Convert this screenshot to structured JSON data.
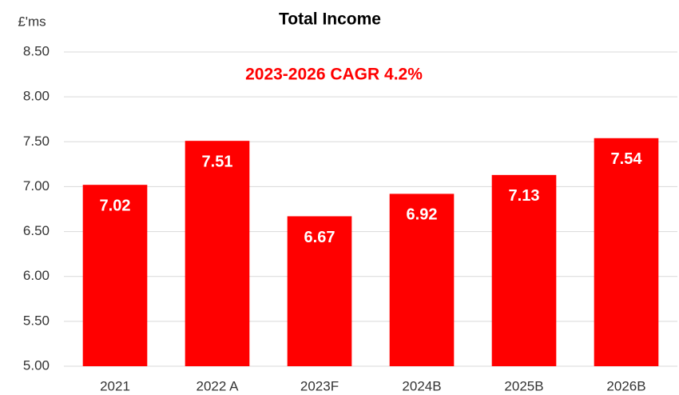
{
  "chart_data": {
    "type": "bar",
    "title": "Total Income",
    "y_label": "£'ms",
    "annotation": "2023-2026 CAGR 4.2%",
    "categories": [
      "2021",
      "2022 A",
      "2023F",
      "2024B",
      "2025B",
      "2026B"
    ],
    "values": [
      7.02,
      7.51,
      6.67,
      6.92,
      7.13,
      7.54
    ],
    "color": "#ff0000",
    "annotation_color": "#ff0000",
    "value_label_color": "#ffffff",
    "ylim": [
      5,
      8.5
    ],
    "yticks": [
      {
        "value": 5,
        "label": "5.00"
      },
      {
        "value": 5.5,
        "label": "5.50"
      },
      {
        "value": 6,
        "label": "6.00"
      },
      {
        "value": 6.5,
        "label": "6.50"
      },
      {
        "value": 7,
        "label": "7.00"
      },
      {
        "value": 7.5,
        "label": "7.50"
      },
      {
        "value": 8,
        "label": "8.00"
      },
      {
        "value": 8.5,
        "label": "8.50"
      }
    ],
    "grid": true
  }
}
